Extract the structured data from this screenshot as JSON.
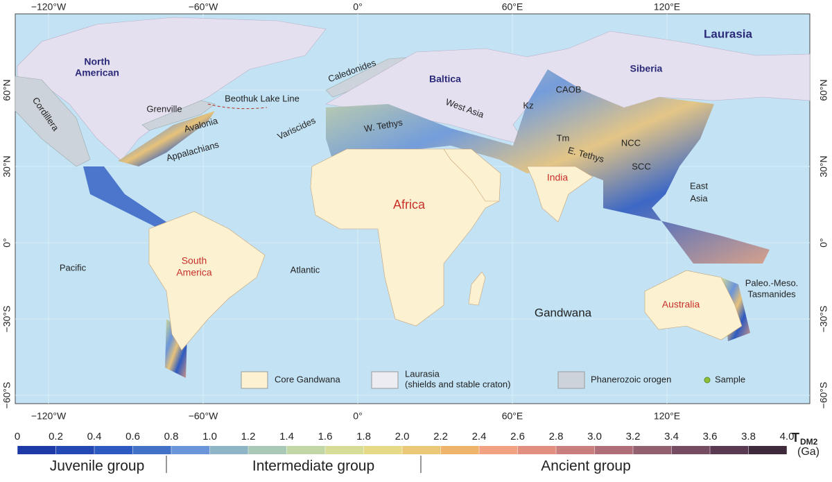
{
  "map": {
    "lon_labels": [
      "−120°W",
      "−60°W",
      "0°",
      "60°E",
      "120°E"
    ],
    "lat_labels": [
      "60°N",
      "30°N",
      "0°",
      "−30°S",
      "−60°S"
    ],
    "labels": [
      "Laurasia",
      "North",
      "American",
      "Siberia",
      "Baltica",
      "CAOB",
      "Caledonides",
      "Cordillera",
      "Grenville",
      "Beothuk Lake Line",
      "Avalonia",
      "Appalachians",
      "Variscides",
      "W. Tethys",
      "West Asia",
      "Kz",
      "Tm",
      "NCC",
      "E. Tethys",
      "SCC",
      "India",
      "East",
      "Asia",
      "Africa",
      "Pacific",
      "South",
      "America",
      "Atlantic",
      "Gandwana",
      "Australia",
      "Paleo.-Meso.",
      "Tasmanides"
    ]
  },
  "legend": {
    "core": "Core Gandwana",
    "laurasia": "Laurasia",
    "laurasia_note": "(shields and stable craton)",
    "orogen": "Phanerozoic orogen",
    "sample": "Sample"
  },
  "colorbar": {
    "title": "T",
    "title_sub": "DM2",
    "unit": "(Ga)",
    "ticks": [
      0,
      0.2,
      0.4,
      0.6,
      0.8,
      {
        "value": 1,
        "label": "1.0"
      },
      1.2,
      1.4,
      1.6,
      1.8,
      {
        "value": 2,
        "label": "2.0"
      },
      2.2,
      2.4,
      2.6,
      2.8,
      {
        "value": 3,
        "label": "3.0"
      },
      3.2,
      3.4,
      3.6,
      3.8,
      {
        "value": 4,
        "label": "4.0"
      }
    ],
    "colors": [
      "#1d3aa6",
      "#2448b4",
      "#2d5ac0",
      "#4272c8",
      "#6a95d8",
      "#8db5c6",
      "#a9c9b6",
      "#c1d7a6",
      "#d7dc96",
      "#e7da86",
      "#ebc878",
      "#efb46c",
      "#f2a282",
      "#e28f80",
      "#ca7f7f",
      "#b06f78",
      "#936070",
      "#764c62",
      "#5a3a52",
      "#3e2a3a"
    ],
    "groups": [
      "Juvenile group",
      "Intermediate group",
      "Ancient group"
    ]
  }
}
